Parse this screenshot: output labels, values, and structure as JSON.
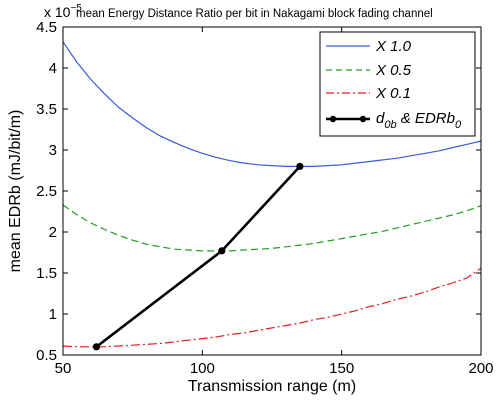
{
  "chart_data": {
    "type": "line",
    "title": "mean Energy Distance Ratio per bit in Nakagami block fading channel",
    "xlabel": "Transmission range (m)",
    "ylabel": "mean EDRb (mJ/bit/m)",
    "y_scale_base": "x 10",
    "y_scale_exponent": "−5",
    "xlim": [
      50,
      200
    ],
    "ylim": [
      0.5,
      4.5
    ],
    "x_ticks": [
      "50",
      "100",
      "150",
      "200"
    ],
    "y_ticks": [
      "0.5",
      "1",
      "1.5",
      "2",
      "2.5",
      "3",
      "3.5",
      "4",
      "4.5"
    ],
    "grid": false,
    "legend_position": "top-right",
    "series": [
      {
        "name": "X 1.0",
        "color": "#3b5bdb",
        "style": "solid",
        "x": [
          50,
          55,
          60,
          65,
          70,
          75,
          80,
          85,
          90,
          95,
          100,
          105,
          110,
          115,
          120,
          125,
          130,
          135,
          140,
          145,
          150,
          155,
          160,
          165,
          170,
          175,
          180,
          185,
          190,
          195,
          200
        ],
        "y": [
          4.32,
          4.07,
          3.86,
          3.68,
          3.52,
          3.39,
          3.27,
          3.17,
          3.09,
          3.02,
          2.96,
          2.91,
          2.87,
          2.84,
          2.82,
          2.81,
          2.8,
          2.8,
          2.8,
          2.81,
          2.82,
          2.84,
          2.86,
          2.88,
          2.9,
          2.93,
          2.96,
          2.99,
          3.03,
          3.07,
          3.11
        ]
      },
      {
        "name": "X 0.5",
        "color": "#22a022",
        "style": "dashed",
        "x": [
          50,
          55,
          60,
          65,
          70,
          75,
          80,
          85,
          90,
          95,
          100,
          105,
          110,
          115,
          120,
          125,
          130,
          135,
          140,
          145,
          150,
          155,
          160,
          165,
          170,
          175,
          180,
          185,
          190,
          195,
          200
        ],
        "y": [
          2.33,
          2.21,
          2.11,
          2.03,
          1.96,
          1.9,
          1.85,
          1.82,
          1.79,
          1.78,
          1.77,
          1.77,
          1.77,
          1.78,
          1.79,
          1.8,
          1.82,
          1.84,
          1.86,
          1.89,
          1.92,
          1.95,
          1.98,
          2.01,
          2.05,
          2.09,
          2.13,
          2.17,
          2.21,
          2.26,
          2.32
        ]
      },
      {
        "name": "X 0.1",
        "color": "#e02020",
        "style": "dashdot",
        "x": [
          50,
          55,
          60,
          65,
          70,
          75,
          80,
          85,
          90,
          95,
          100,
          105,
          110,
          115,
          120,
          125,
          130,
          135,
          140,
          145,
          150,
          155,
          160,
          165,
          170,
          175,
          180,
          185,
          190,
          195,
          200
        ],
        "y": [
          0.61,
          0.6,
          0.6,
          0.6,
          0.61,
          0.62,
          0.63,
          0.64,
          0.66,
          0.68,
          0.7,
          0.72,
          0.75,
          0.77,
          0.8,
          0.83,
          0.86,
          0.89,
          0.93,
          0.96,
          1.0,
          1.04,
          1.09,
          1.13,
          1.18,
          1.22,
          1.27,
          1.33,
          1.38,
          1.44,
          1.56
        ]
      },
      {
        "name": "d",
        "name_subscript": "0b",
        "name_suffix": " & EDRb",
        "name_suffix_subscript": "0",
        "color": "#000000",
        "style": "solid-markers",
        "x": [
          62,
          107,
          135
        ],
        "y": [
          0.6,
          1.77,
          2.8
        ]
      }
    ]
  }
}
